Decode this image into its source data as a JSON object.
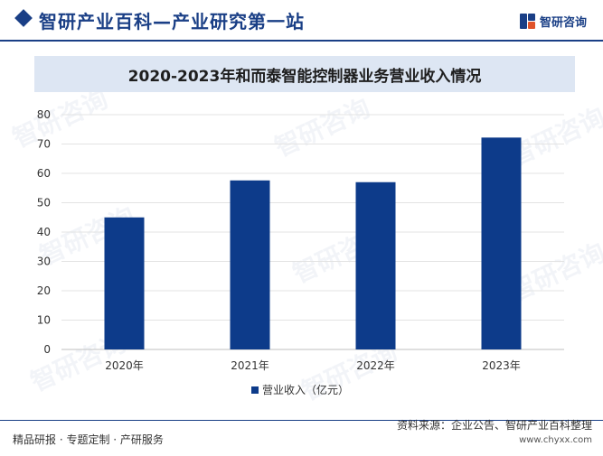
{
  "header": {
    "title": "智研产业百科—产业研究第一站",
    "brand": "智研咨询"
  },
  "chart_data": {
    "type": "bar",
    "title": "2020-2023年和而泰智能控制器业务营业收入情况",
    "categories": [
      "2020年",
      "2021年",
      "2022年",
      "2023年"
    ],
    "series": [
      {
        "name": "营业收入（亿元）",
        "values": [
          45.0,
          57.6,
          57.0,
          72.2
        ]
      }
    ],
    "ylim": [
      0,
      80
    ],
    "yticks": [
      0,
      10,
      20,
      30,
      40,
      50,
      60,
      70,
      80
    ],
    "grid": true,
    "legend": "bottom",
    "bar_color": "#0d3b8a"
  },
  "footer": {
    "left": "精品研报 · 专题定制 · 产研服务",
    "source": "资料来源：企业公告、智研产业百科整理",
    "website": "www.chyxx.com"
  },
  "watermark": "智研咨询"
}
